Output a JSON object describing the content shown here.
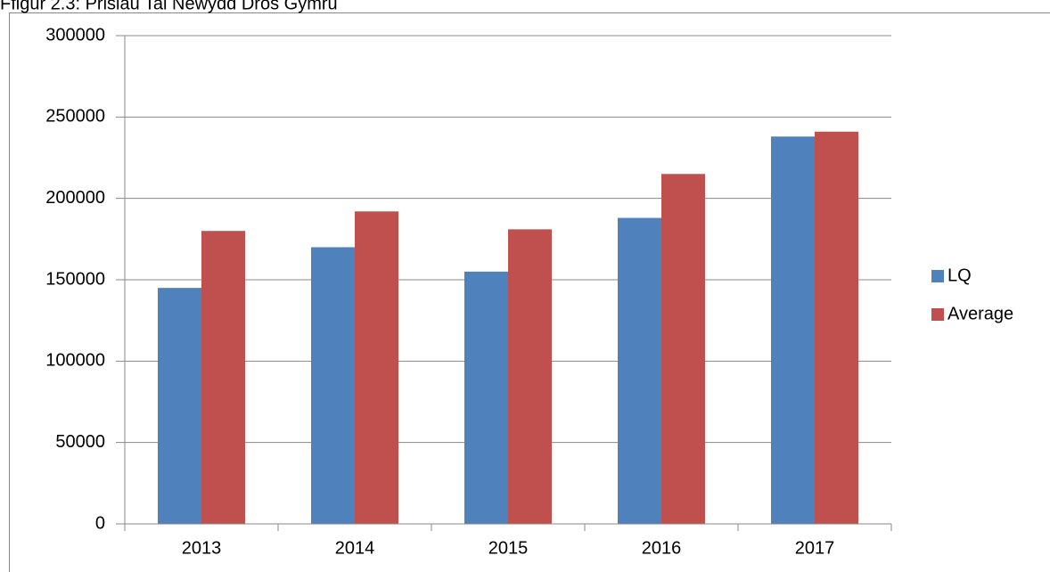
{
  "chart_data": {
    "type": "bar",
    "title": "Ffigur 2.3: Prisiau Tai Newydd Dros Gymru",
    "categories": [
      "2013",
      "2014",
      "2015",
      "2016",
      "2017"
    ],
    "series": [
      {
        "name": "LQ",
        "color": "#4f81bd",
        "values": [
          145000,
          170000,
          155000,
          188000,
          238000
        ]
      },
      {
        "name": "Average",
        "color": "#c0504d",
        "values": [
          180000,
          192000,
          181000,
          215000,
          241000
        ]
      }
    ],
    "ylim": [
      0,
      300000
    ],
    "yticks": [
      0,
      50000,
      100000,
      150000,
      200000,
      250000,
      300000
    ],
    "grid": true,
    "legend": "right"
  }
}
